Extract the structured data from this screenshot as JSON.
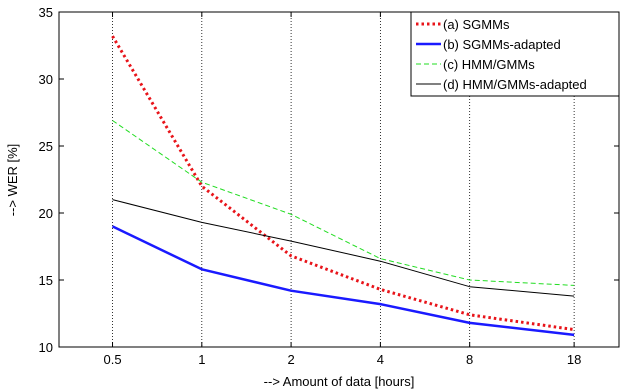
{
  "chart_data": {
    "type": "line",
    "xlabel": "--> Amount of data [hours]",
    "ylabel": "--> WER [%]",
    "x_scale": "log2",
    "x": [
      0.5,
      1,
      2,
      4,
      8,
      18
    ],
    "x_tick_labels": [
      "0.5",
      "1",
      "2",
      "4",
      "8",
      "18"
    ],
    "xlim": [
      0.33,
      25.5
    ],
    "ylim": [
      10,
      35
    ],
    "y_ticks": [
      10,
      15,
      20,
      25,
      30,
      35
    ],
    "y_tick_labels": [
      "10",
      "15",
      "20",
      "25",
      "30",
      "35"
    ],
    "grid": "vertical dotted",
    "legend_position": "top-right",
    "series": [
      {
        "name": "(a) SGMMs",
        "values": [
          33.2,
          22.0,
          16.8,
          14.3,
          12.4,
          11.3
        ],
        "color": "#e8141a",
        "style": "dotted",
        "width": 3
      },
      {
        "name": "(b) SGMMs-adapted",
        "values": [
          19.0,
          15.8,
          14.2,
          13.2,
          11.8,
          10.9
        ],
        "color": "#1a1aff",
        "style": "solid",
        "width": 2.5
      },
      {
        "name": "(c) HMM/GMMs",
        "values": [
          26.9,
          22.3,
          19.9,
          16.6,
          15.0,
          14.6
        ],
        "color": "#22dd22",
        "style": "dashed",
        "width": 1
      },
      {
        "name": "(d) HMM/GMMs-adapted",
        "values": [
          21.0,
          19.3,
          17.9,
          16.4,
          14.5,
          13.8
        ],
        "color": "#000000",
        "style": "solid",
        "width": 1
      }
    ]
  }
}
